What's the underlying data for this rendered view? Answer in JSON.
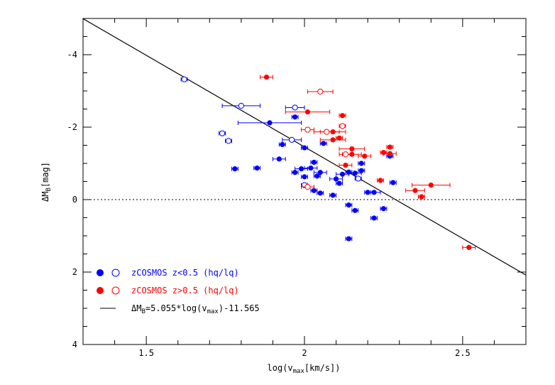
{
  "chart_data": {
    "type": "scatter",
    "title": "",
    "xlabel": {
      "pre": "log(v",
      "sub": "max",
      "post": "[km/s])"
    },
    "ylabel": {
      "pre": "ΔM",
      "sub": "B",
      "post": "[mag]"
    },
    "xlim": [
      1.3,
      2.7
    ],
    "ylim": [
      4,
      -5
    ],
    "x_ticks": [
      1.5,
      2,
      2.5
    ],
    "x_tick_labels": [
      "1.5",
      "2",
      "2.5"
    ],
    "y_ticks": [
      -4,
      -2,
      0,
      2,
      4
    ],
    "y_tick_labels": [
      "-4",
      "-2",
      "0",
      "2",
      "4"
    ],
    "reference_line": {
      "y": 0,
      "style": "dotted"
    },
    "fit_line": {
      "slope": 5.055,
      "intercept": -11.565,
      "label": "=5.055*log(v)-11.565"
    },
    "legend_placement": "bottom-left",
    "legend": [
      {
        "text": "zCOSMOS z<0.5 (hq/lq)",
        "color": "#0000ff"
      },
      {
        "text": "zCOSMOS z>0.5 (hq/lq)",
        "color": "#ff0000"
      },
      {
        "pre": "ΔM",
        "sub": "B",
        "mid": "=5.055*log(v",
        "sub2": "max",
        "post": ")-11.565",
        "color": "#000000"
      }
    ],
    "series": [
      {
        "name": "zCOSMOS z<0.5 hq",
        "color": "#0000ff",
        "filled": true,
        "points": [
          [
            1.89,
            -2.12,
            0.1
          ],
          [
            1.97,
            -2.28,
            0.01
          ],
          [
            1.93,
            -1.52,
            0.01
          ],
          [
            2.0,
            -1.43,
            0.01
          ],
          [
            1.92,
            -1.12,
            0.02
          ],
          [
            1.78,
            -0.85,
            0.01
          ],
          [
            1.85,
            -0.87,
            0.01
          ],
          [
            1.97,
            -0.75,
            0.01
          ],
          [
            1.99,
            -0.85,
            0.02
          ],
          [
            2.0,
            -0.63,
            0.01
          ],
          [
            2.02,
            -0.87,
            0.02
          ],
          [
            2.03,
            -1.03,
            0.01
          ],
          [
            2.05,
            -0.75,
            0.02
          ],
          [
            2.04,
            -0.65,
            0.01
          ],
          [
            2.06,
            -1.55,
            0.01
          ],
          [
            2.1,
            -0.57,
            0.02
          ],
          [
            2.11,
            -0.45,
            0.01
          ],
          [
            2.12,
            -0.7,
            0.02
          ],
          [
            2.14,
            -0.76,
            0.01
          ],
          [
            2.16,
            -0.73,
            0.02
          ],
          [
            2.18,
            -1.0,
            0.01
          ],
          [
            2.18,
            -0.8,
            0.01
          ],
          [
            2.2,
            -0.2,
            0.01
          ],
          [
            2.03,
            -0.25,
            0.01
          ],
          [
            2.05,
            -0.18,
            0.01
          ],
          [
            2.09,
            -0.12,
            0.01
          ],
          [
            2.14,
            0.15,
            0.01
          ],
          [
            2.16,
            0.3,
            0.01
          ],
          [
            2.22,
            -0.2,
            0.02
          ],
          [
            2.25,
            0.25,
            0.01
          ],
          [
            2.22,
            0.51,
            0.01
          ],
          [
            2.14,
            1.08,
            0.01
          ],
          [
            2.27,
            -1.2,
            0.01
          ],
          [
            2.28,
            -0.47,
            0.01
          ]
        ]
      },
      {
        "name": "zCOSMOS z<0.5 lq",
        "color": "#0000ff",
        "filled": false,
        "points": [
          [
            1.62,
            -3.32,
            0.01
          ],
          [
            1.8,
            -2.59,
            0.06
          ],
          [
            1.97,
            -2.54,
            0.03
          ],
          [
            1.74,
            -1.83,
            0.01
          ],
          [
            1.76,
            -1.62,
            0.01
          ],
          [
            1.96,
            -1.65,
            0.03
          ],
          [
            2.0,
            -0.4,
            0.01
          ],
          [
            2.17,
            -0.58,
            0.01
          ]
        ]
      },
      {
        "name": "zCOSMOS z>0.5 hq",
        "color": "#ff0000",
        "filled": true,
        "points": [
          [
            1.88,
            -3.38,
            0.02
          ],
          [
            2.01,
            -2.42,
            0.07
          ],
          [
            2.12,
            -2.32,
            0.01
          ],
          [
            2.09,
            -1.87,
            0.04
          ],
          [
            2.11,
            -1.7,
            0.01
          ],
          [
            2.09,
            -1.65,
            0.04
          ],
          [
            2.19,
            -1.2,
            0.02
          ],
          [
            2.25,
            -1.3,
            0.01
          ],
          [
            2.27,
            -1.27,
            0.02
          ],
          [
            2.27,
            -1.45,
            0.01
          ],
          [
            2.15,
            -1.4,
            0.04
          ],
          [
            2.15,
            -1.25,
            0.03
          ],
          [
            2.13,
            -0.95,
            0.02
          ],
          [
            2.24,
            -0.53,
            0.01
          ],
          [
            2.4,
            -0.4,
            0.06
          ],
          [
            2.35,
            -0.25,
            0.03
          ],
          [
            2.37,
            -0.08,
            0.01
          ],
          [
            2.52,
            1.32,
            0.02
          ]
        ]
      },
      {
        "name": "zCOSMOS z>0.5 lq",
        "color": "#ff0000",
        "filled": false,
        "points": [
          [
            2.05,
            -2.98,
            0.04
          ],
          [
            2.01,
            -1.93,
            0.02
          ],
          [
            2.07,
            -1.87,
            0.04
          ],
          [
            2.12,
            -2.03,
            0.01
          ],
          [
            2.13,
            -1.25,
            0.02
          ],
          [
            2.01,
            -0.35,
            0.02
          ]
        ]
      }
    ]
  }
}
